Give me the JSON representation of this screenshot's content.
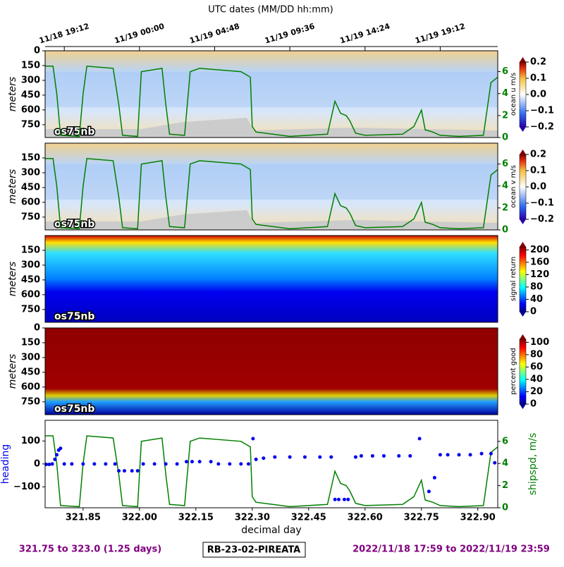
{
  "time_axis": {
    "title": "UTC dates (MM/DD hh:mm)",
    "ticks": [
      {
        "value": 321.8,
        "label": "11/18 19:12"
      },
      {
        "value": 322.0,
        "label": "11/19 00:00"
      },
      {
        "value": 322.2,
        "label": "11/19 04:48"
      },
      {
        "value": 322.4,
        "label": "11/19 09:36"
      },
      {
        "value": 322.6,
        "label": "11/19 14:24"
      },
      {
        "value": 322.8,
        "label": "11/19 19:12"
      }
    ]
  },
  "chart_data": [
    {
      "type": "heatmap",
      "label": "os75nb",
      "ylabel": "meters",
      "colorbar_label": "ocean u m/s",
      "xlim": [
        321.749,
        322.953
      ],
      "ylim": [
        880,
        0
      ],
      "yticks": [
        0,
        150,
        300,
        450,
        600,
        750
      ],
      "clim": [
        -0.2,
        0.2
      ],
      "cticks": [
        {
          "value": -0.2,
          "label": "−0.2"
        },
        {
          "value": -0.1,
          "label": "−0.1"
        },
        {
          "value": 0.0,
          "label": "0.0"
        },
        {
          "value": 0.1,
          "label": "0.1"
        },
        {
          "value": 0.2,
          "label": "0.2"
        }
      ],
      "y2lim": [
        0,
        7.9
      ],
      "y2ticks": [
        0,
        2,
        4,
        6
      ],
      "colormap": "diverging"
    },
    {
      "type": "heatmap",
      "label": "os75nb",
      "ylabel": "meters",
      "colorbar_label": "ocean v m/s",
      "xlim": [
        321.749,
        322.953
      ],
      "ylim": [
        880,
        0
      ],
      "yticks": [
        150,
        300,
        450,
        600,
        750
      ],
      "clim": [
        -0.2,
        0.2
      ],
      "cticks": [
        {
          "value": -0.2,
          "label": "−0.2"
        },
        {
          "value": -0.1,
          "label": "−0.1"
        },
        {
          "value": 0.0,
          "label": "0.0"
        },
        {
          "value": 0.1,
          "label": "0.1"
        },
        {
          "value": 0.2,
          "label": "0.2"
        }
      ],
      "y2lim": [
        0,
        7.9
      ],
      "y2ticks": [
        0,
        2,
        4,
        6
      ],
      "colormap": "diverging"
    },
    {
      "type": "heatmap",
      "label": "os75nb",
      "ylabel": "meters",
      "colorbar_label": "signal return",
      "xlim": [
        321.749,
        322.953
      ],
      "ylim": [
        880,
        0
      ],
      "yticks": [
        150,
        300,
        450,
        600,
        750
      ],
      "clim": [
        0,
        210
      ],
      "cticks": [
        0,
        40,
        80,
        120,
        160,
        200
      ],
      "colormap": "jet-signal"
    },
    {
      "type": "heatmap",
      "label": "os75nb",
      "ylabel": "meters",
      "colorbar_label": "percent good",
      "xlim": [
        321.749,
        322.953
      ],
      "ylim": [
        880,
        0
      ],
      "yticks": [
        0,
        150,
        300,
        450,
        600,
        750
      ],
      "clim": [
        0,
        105
      ],
      "cticks": [
        0,
        20,
        40,
        60,
        80,
        100
      ],
      "colormap": "jet-pg"
    },
    {
      "type": "line",
      "xlabel": "decimal day",
      "xlim": [
        321.749,
        322.953
      ],
      "xticks": [
        {
          "value": 321.85,
          "label": "321.85"
        },
        {
          "value": 322.0,
          "label": "322.00"
        },
        {
          "value": 322.15,
          "label": "322.15"
        },
        {
          "value": 322.3,
          "label": "322.30"
        },
        {
          "value": 322.45,
          "label": "322.45"
        },
        {
          "value": 322.6,
          "label": "322.60"
        },
        {
          "value": 322.75,
          "label": "322.75"
        },
        {
          "value": 322.9,
          "label": "322.90"
        }
      ],
      "ylim": [
        -191,
        190
      ],
      "yticks": [
        {
          "value": -100,
          "label": "−100"
        },
        0,
        100
      ],
      "y2lim": [
        0,
        7.9
      ],
      "y2ticks": [
        0,
        2,
        4,
        6
      ],
      "series": [
        {
          "name": "heading",
          "color": "#0000ee",
          "axis": "y",
          "x": [
            321.752,
            321.76,
            321.768,
            321.775,
            321.78,
            321.785,
            321.79,
            321.8,
            321.82,
            321.85,
            321.88,
            321.91,
            321.935,
            321.945,
            321.96,
            321.98,
            321.995,
            322.01,
            322.04,
            322.07,
            322.1,
            322.125,
            322.14,
            322.16,
            322.19,
            322.21,
            322.24,
            322.27,
            322.29,
            322.302,
            322.31,
            322.33,
            322.36,
            322.4,
            322.44,
            322.48,
            322.51,
            322.52,
            322.53,
            322.545,
            322.555,
            322.575,
            322.59,
            322.62,
            322.65,
            322.69,
            322.72,
            322.745,
            322.77,
            322.785,
            322.8,
            322.82,
            322.85,
            322.88,
            322.91,
            322.935,
            322.945
          ],
          "values": [
            -2,
            -2,
            0,
            20,
            40,
            60,
            68,
            0,
            0,
            0,
            0,
            0,
            0,
            -30,
            -30,
            -30,
            -30,
            0,
            0,
            0,
            0,
            10,
            10,
            10,
            10,
            0,
            0,
            0,
            0,
            110,
            20,
            25,
            30,
            30,
            30,
            30,
            30,
            -155,
            -155,
            -155,
            -155,
            30,
            35,
            35,
            35,
            35,
            35,
            110,
            -120,
            -60,
            40,
            40,
            40,
            40,
            45,
            45,
            5
          ]
        },
        {
          "name": "shipspd, m/s",
          "color": "#008000",
          "axis": "y2",
          "x": [
            321.749,
            321.77,
            321.78,
            321.79,
            321.84,
            321.85,
            321.86,
            321.93,
            321.945,
            321.955,
            321.995,
            322.005,
            322.06,
            322.07,
            322.08,
            322.12,
            322.135,
            322.16,
            322.27,
            322.295,
            322.3,
            322.31,
            322.4,
            322.5,
            322.52,
            322.535,
            322.55,
            322.56,
            322.575,
            322.6,
            322.7,
            322.73,
            322.75,
            322.76,
            322.78,
            322.8,
            322.85,
            322.915,
            322.935,
            322.953
          ],
          "values": [
            6.5,
            6.5,
            4,
            0.2,
            0.1,
            4,
            6.5,
            6.3,
            3,
            0.2,
            0.1,
            6,
            6.3,
            3,
            0.3,
            0.2,
            6,
            6.3,
            6,
            5.5,
            1,
            0.5,
            0.1,
            0.3,
            3.3,
            2.2,
            2,
            1.5,
            0.4,
            0.2,
            0.3,
            1,
            2.5,
            0.7,
            0.5,
            0.2,
            0.1,
            0.2,
            5,
            5.5
          ]
        }
      ]
    }
  ],
  "footer": {
    "range": "321.75 to 323.0 (1.25 days)",
    "cruise": "RB-23-02-PIREATA",
    "dates": "2022/11/18 17:59 to 2022/11/19 23:59"
  }
}
